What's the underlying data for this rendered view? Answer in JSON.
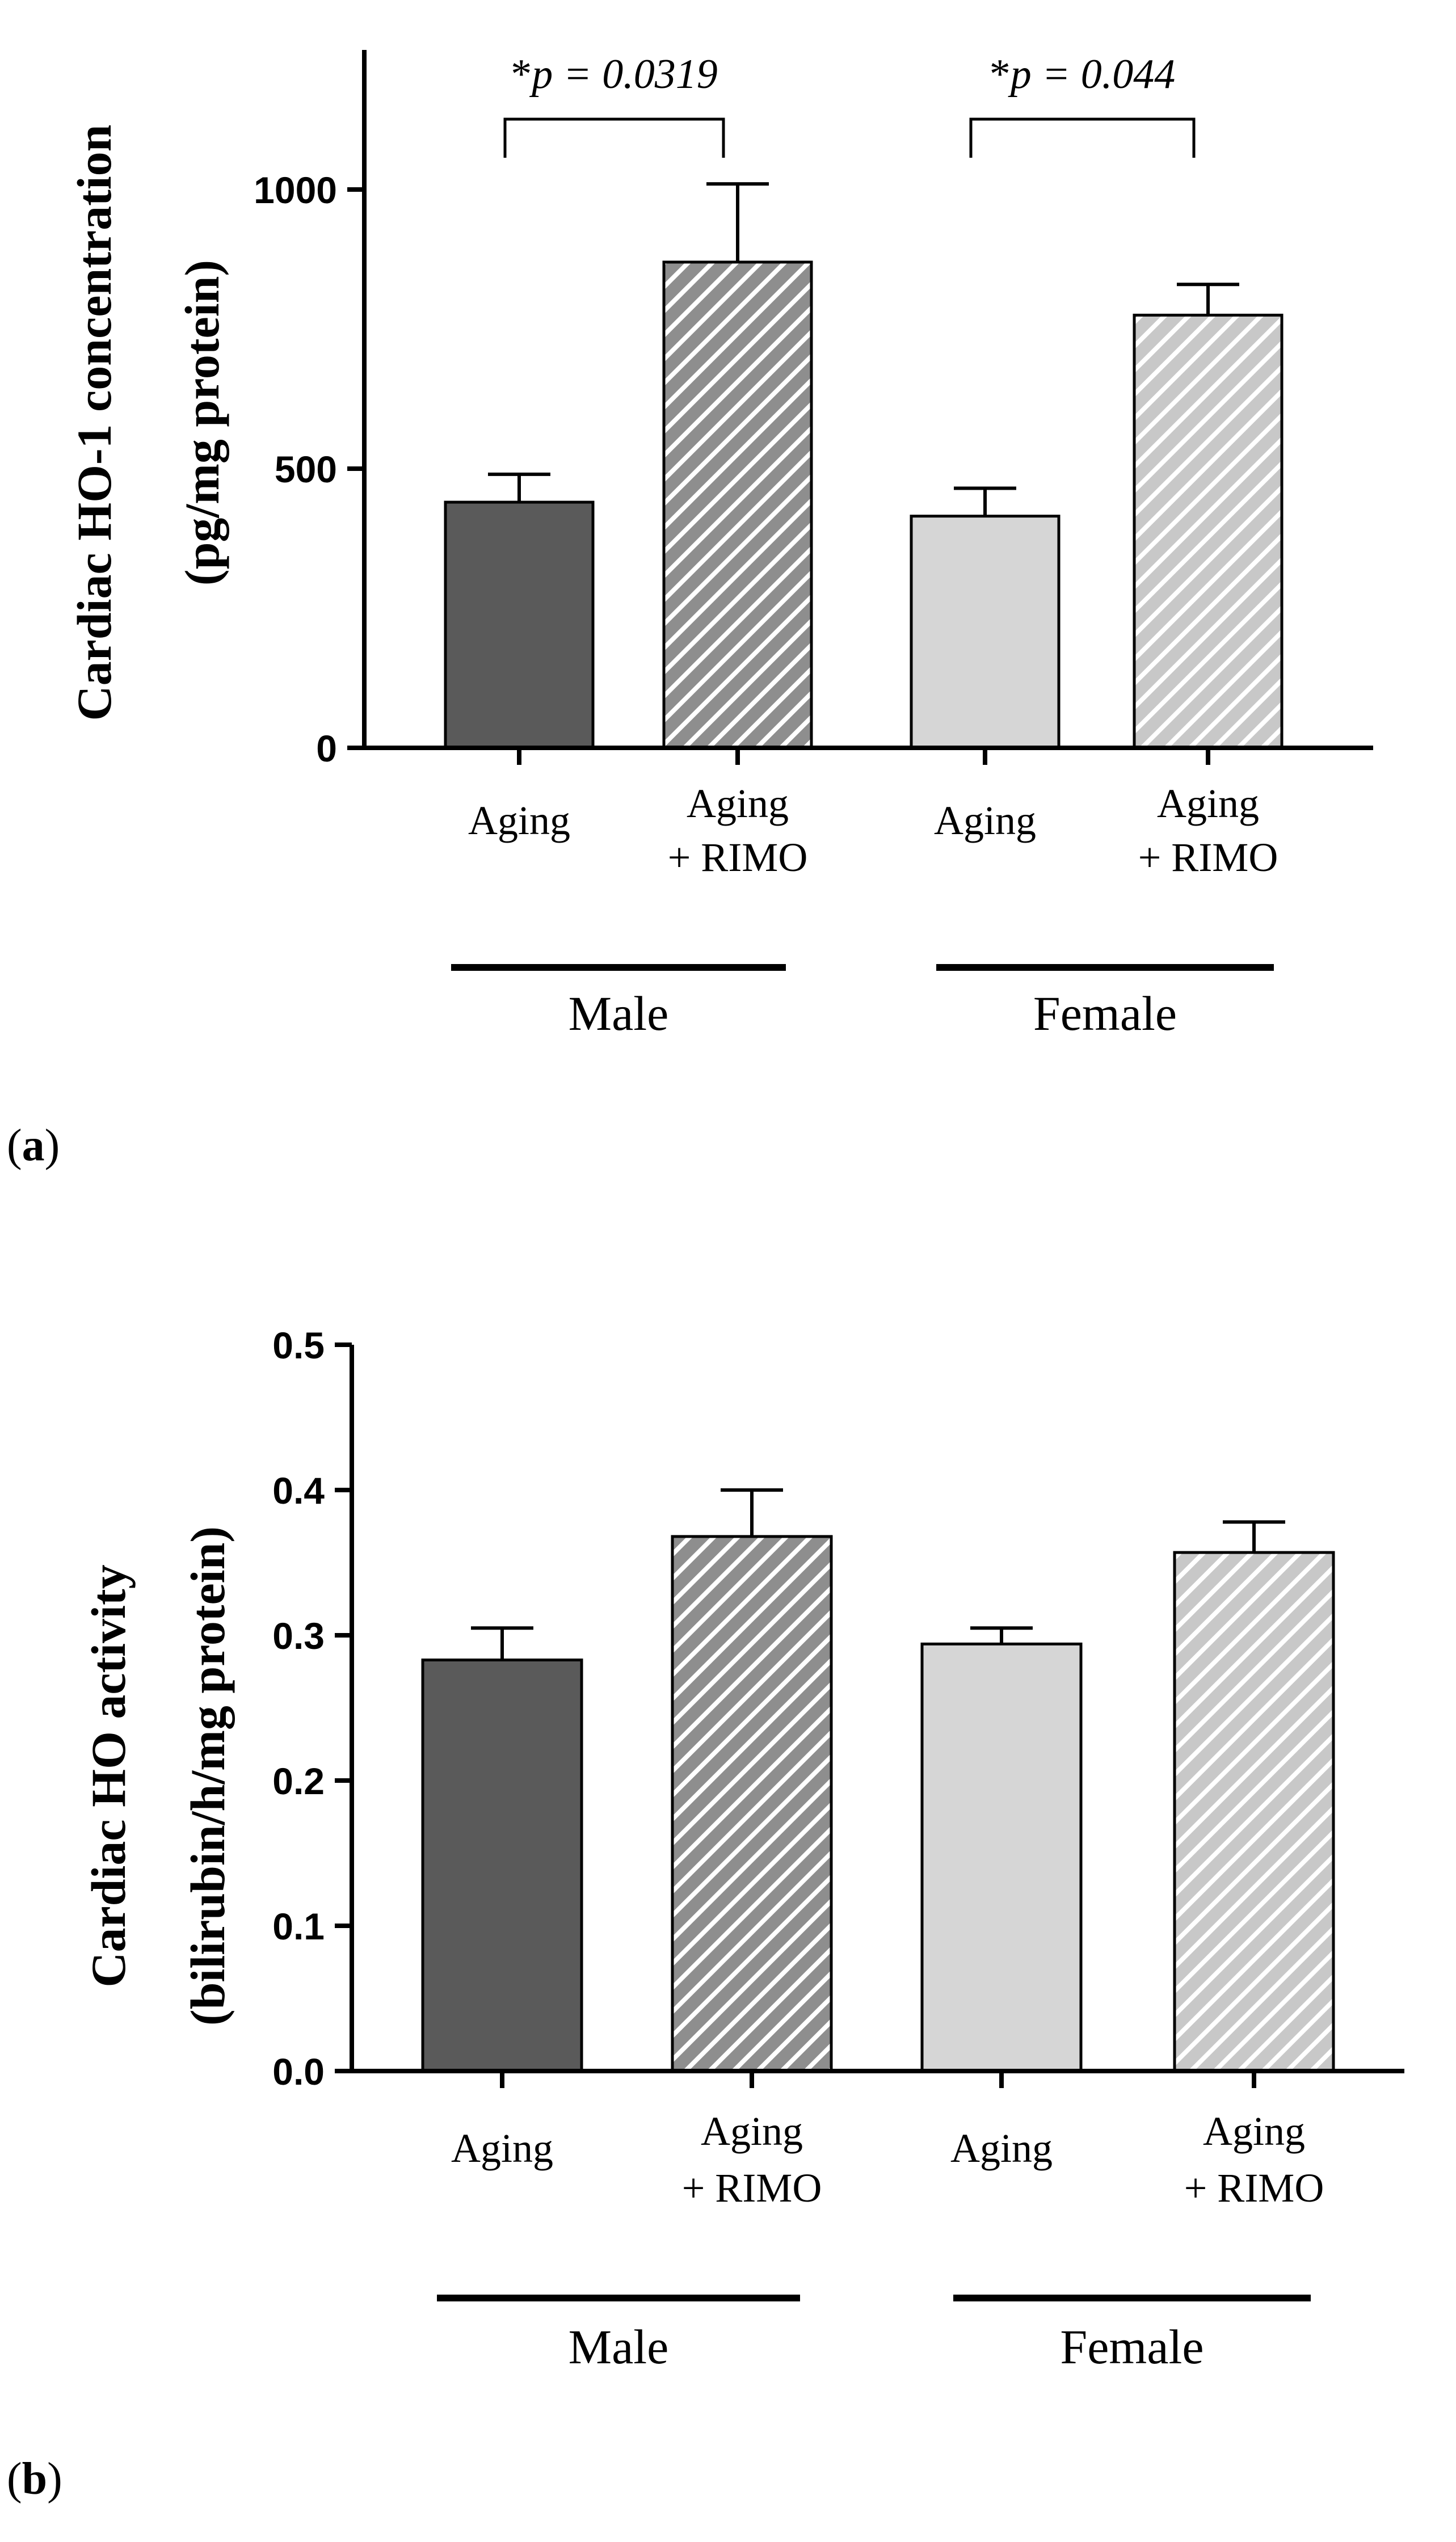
{
  "chart_data": [
    {
      "type": "bar",
      "panel_label": "a",
      "ylabel_line1": "Cardiac HO-1 concentration",
      "ylabel_line2": "(pg/mg protein)",
      "ylim": [
        0,
        1250
      ],
      "yticks": [
        0,
        500,
        1000
      ],
      "categories": [
        {
          "line1": "Aging",
          "line2": ""
        },
        {
          "line1": "Aging",
          "line2": "+ RIMO"
        },
        {
          "line1": "Aging",
          "line2": ""
        },
        {
          "line1": "Aging",
          "line2": "+ RIMO"
        }
      ],
      "values": [
        440,
        870,
        415,
        775
      ],
      "errors": [
        50,
        140,
        50,
        55
      ],
      "bar_styles": [
        "dark",
        "hatch-dark",
        "light",
        "hatch-light"
      ],
      "groups": [
        {
          "label": "Male",
          "bars": [
            0,
            1
          ]
        },
        {
          "label": "Female",
          "bars": [
            2,
            3
          ]
        }
      ],
      "annotations": [
        {
          "prefix": "*",
          "text": "p = 0.0319",
          "bars": [
            0,
            1
          ]
        },
        {
          "prefix": "*",
          "text": "p = 0.044",
          "bars": [
            2,
            3
          ]
        }
      ]
    },
    {
      "type": "bar",
      "panel_label": "b",
      "ylabel_line1": "Cardiac HO activity",
      "ylabel_line2": "(bilirubin/h/mg protein)",
      "ylim": [
        0,
        0.5
      ],
      "yticks": [
        0.0,
        0.1,
        0.2,
        0.3,
        0.4,
        0.5
      ],
      "ytick_labels": [
        "0.0",
        "0.1",
        "0.2",
        "0.3",
        "0.4",
        "0.5"
      ],
      "categories": [
        {
          "line1": "Aging",
          "line2": ""
        },
        {
          "line1": "Aging",
          "line2": "+ RIMO"
        },
        {
          "line1": "Aging",
          "line2": ""
        },
        {
          "line1": "Aging",
          "line2": "+ RIMO"
        }
      ],
      "values": [
        0.283,
        0.368,
        0.294,
        0.357
      ],
      "errors": [
        0.022,
        0.032,
        0.011,
        0.021
      ],
      "bar_styles": [
        "dark",
        "hatch-dark",
        "light",
        "hatch-light"
      ],
      "groups": [
        {
          "label": "Male",
          "bars": [
            0,
            1
          ]
        },
        {
          "label": "Female",
          "bars": [
            2,
            3
          ]
        }
      ],
      "annotations": []
    }
  ],
  "colors": {
    "dark": "#5a5a5a",
    "light": "#d6d6d6",
    "hatch_dark_bg": "#8e8e8e",
    "hatch_light_bg": "#c8c8c8",
    "ink": "#000000"
  }
}
